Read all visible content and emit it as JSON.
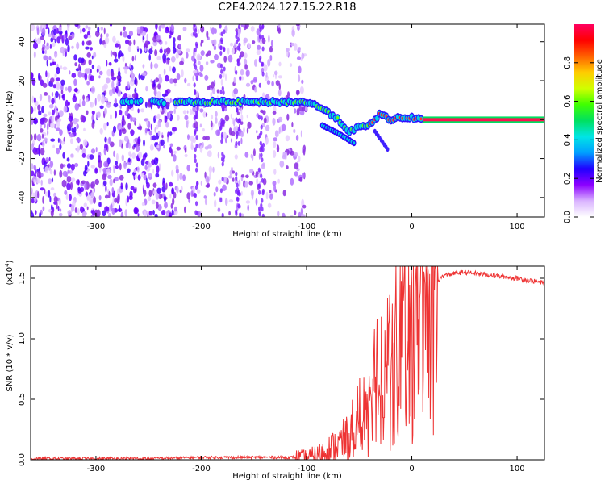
{
  "title": "C2E4.2024.127.15.22.R18",
  "chart_data": [
    {
      "type": "heatmap",
      "xlabel": "Height of straight line (km)",
      "ylabel": "Frequency (Hz)",
      "xlim": [
        -362,
        126
      ],
      "ylim": [
        -50,
        49
      ],
      "xticks": [
        -300,
        -200,
        -100,
        0,
        100
      ],
      "yticks": [
        -40,
        -20,
        0,
        20,
        40
      ],
      "colorbar": {
        "label": "Normalized spectral amplitude",
        "range": [
          0.0,
          1.0
        ],
        "ticks": [
          0.0,
          0.2,
          0.4,
          0.6,
          0.8
        ],
        "tick_labels": [
          "0.0",
          "0.2",
          "0.4",
          "0.6",
          "0.8"
        ],
        "colors": [
          "#ffffff",
          "#d9b3ff",
          "#8c00ff",
          "#2000ff",
          "#00a0ff",
          "#00e5e5",
          "#00e060",
          "#40ff00",
          "#d0ff00",
          "#ffcc00",
          "#ff6000",
          "#ff0000",
          "#ff0060"
        ]
      },
      "ridge": {
        "description_none": "",
        "x": [
          -275,
          -250,
          -225,
          -200,
          -175,
          -150,
          -125,
          -100,
          -90,
          -80,
          -70,
          -60,
          -50,
          -40,
          -30,
          -20,
          -10,
          0,
          10,
          126
        ],
        "y": [
          9,
          9,
          9,
          9,
          9,
          9,
          9,
          9,
          7,
          4,
          0,
          -6,
          -4,
          -3,
          3,
          0,
          1,
          1,
          0,
          0
        ]
      }
    },
    {
      "type": "line",
      "xlabel": "Height of straight line (km)",
      "ylabel": "SNR (10 * v/v)",
      "y_multiplier_label": "(x10",
      "y_multiplier_exp": "4",
      "y_multiplier_close": ")",
      "xlim": [
        -362,
        126
      ],
      "ylim": [
        0.0,
        1.6
      ],
      "xticks": [
        -300,
        -200,
        -100,
        0,
        100
      ],
      "yticks": [
        0.0,
        0.5,
        1.0,
        1.5
      ],
      "ytick_labels": [
        "0.0",
        "0.5",
        "1.0",
        "1.5"
      ],
      "line_color": "#ee3333",
      "envelope": {
        "x": [
          -362,
          -250,
          -200,
          -150,
          -120,
          -100,
          -90,
          -80,
          -70,
          -60,
          -50,
          -40,
          -30,
          -20,
          -10,
          0,
          10,
          20,
          30,
          40,
          50,
          60,
          80,
          100,
          126
        ],
        "y": [
          0.01,
          0.01,
          0.02,
          0.02,
          0.02,
          0.02,
          0.04,
          0.08,
          0.12,
          0.18,
          0.35,
          0.55,
          0.75,
          0.9,
          1.1,
          1.25,
          1.3,
          1.45,
          1.52,
          1.54,
          1.55,
          1.54,
          1.52,
          1.5,
          1.46
        ]
      }
    }
  ]
}
